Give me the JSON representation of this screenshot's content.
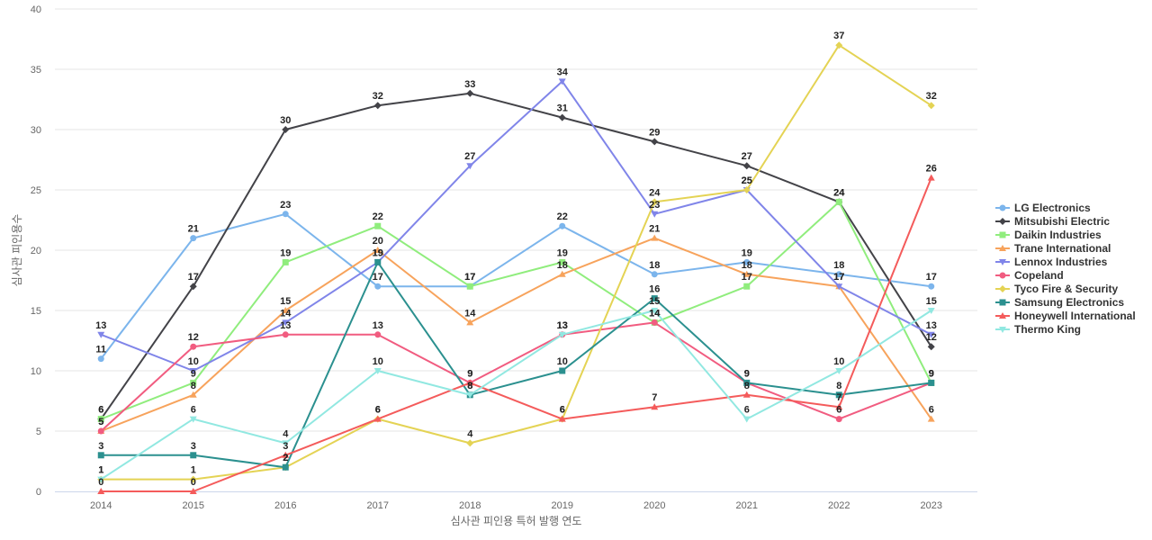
{
  "chart_data": {
    "type": "line",
    "title": "",
    "xlabel": "심사관 피인용 특허 발행 연도",
    "ylabel": "심사관 피인용수",
    "categories": [
      "2014",
      "2015",
      "2016",
      "2017",
      "2018",
      "2019",
      "2020",
      "2021",
      "2022",
      "2023"
    ],
    "ylim": [
      0,
      40
    ],
    "yticks": [
      0,
      5,
      10,
      15,
      20,
      25,
      30,
      35,
      40
    ],
    "grid": true,
    "legend_position": "right",
    "series": [
      {
        "name": "LG Electronics",
        "color": "#7cb5ec",
        "marker": "circle",
        "values": [
          11,
          21,
          23,
          17,
          17,
          22,
          18,
          19,
          18,
          17
        ]
      },
      {
        "name": "Mitsubishi Electric",
        "color": "#434348",
        "marker": "diamond",
        "values": [
          6,
          17,
          30,
          32,
          33,
          31,
          29,
          27,
          24,
          12
        ]
      },
      {
        "name": "Daikin Industries",
        "color": "#90ed7d",
        "marker": "square",
        "values": [
          6,
          9,
          19,
          22,
          17,
          19,
          14,
          17,
          24,
          9
        ]
      },
      {
        "name": "Trane International",
        "color": "#f7a35c",
        "marker": "triangle",
        "values": [
          5,
          8,
          15,
          20,
          14,
          18,
          21,
          18,
          17,
          6
        ]
      },
      {
        "name": "Lennox Industries",
        "color": "#8085e9",
        "marker": "triangle-down",
        "values": [
          13,
          10,
          14,
          19,
          27,
          34,
          23,
          25,
          17,
          13
        ]
      },
      {
        "name": "Copeland",
        "color": "#f15c80",
        "marker": "circle",
        "values": [
          5,
          12,
          13,
          13,
          9,
          13,
          14,
          9,
          6,
          9
        ]
      },
      {
        "name": "Tyco Fire & Security",
        "color": "#e4d354",
        "marker": "diamond",
        "values": [
          1,
          1,
          2,
          6,
          4,
          6,
          24,
          25,
          37,
          32
        ]
      },
      {
        "name": "Samsung Electronics",
        "color": "#2b908f",
        "marker": "square",
        "values": [
          3,
          3,
          2,
          19,
          8,
          10,
          16,
          9,
          8,
          9
        ]
      },
      {
        "name": "Honeywell International",
        "color": "#f45b5b",
        "marker": "triangle",
        "values": [
          0,
          0,
          3,
          6,
          9,
          6,
          7,
          8,
          7,
          26
        ]
      },
      {
        "name": "Thermo King",
        "color": "#91e8e1",
        "marker": "triangle-down",
        "values": [
          1,
          6,
          4,
          10,
          8,
          13,
          15,
          6,
          10,
          15
        ]
      }
    ]
  }
}
